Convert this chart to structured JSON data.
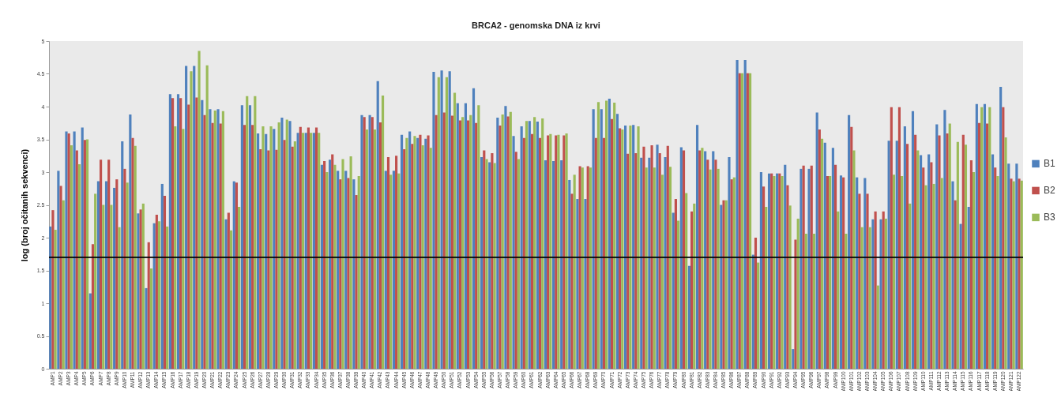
{
  "chart_data": {
    "type": "bar",
    "title": "BRCA2 - genomska DNA iz krvi",
    "ylabel": "log (broj očitanih sekvenci)",
    "categories": [
      "AMP1",
      "AMP2",
      "AMP3",
      "AMP4",
      "AMP5",
      "AMP6",
      "AMP7",
      "AMP8",
      "AMP9",
      "AMP10",
      "AMP11",
      "AMP12",
      "AMP13",
      "AMP14",
      "AMP15",
      "AMP16",
      "AMP17",
      "AMP18",
      "AMP19",
      "AMP20",
      "AMP21",
      "AMP22",
      "AMP23",
      "AMP24",
      "AMP25",
      "AMP26",
      "AMP27",
      "AMP28",
      "AMP29",
      "AMP30",
      "AMP31",
      "AMP32",
      "AMP33",
      "AMP34",
      "AMP35",
      "AMP36",
      "AMP37",
      "AMP38",
      "AMP39",
      "AMP40",
      "AMP41",
      "AMP42",
      "AMP43",
      "AMP44",
      "AMP45",
      "AMP46",
      "AMP47",
      "AMP48",
      "AMP49",
      "AMP50",
      "AMP51",
      "AMP52",
      "AMP53",
      "AMP54",
      "AMP55",
      "AMP56",
      "AMP57",
      "AMP58",
      "AMP59",
      "AMP60",
      "AMP61",
      "AMP62",
      "AMP63",
      "AMP64",
      "AMP65",
      "AMP66",
      "AMP67",
      "AMP68",
      "AMP69",
      "AMP70",
      "AMP71",
      "AMP72",
      "AMP73",
      "AMP74",
      "AMP75",
      "AMP76",
      "AMP77",
      "AMP78",
      "AMP79",
      "AMP80",
      "AMP81",
      "AMP82",
      "AMP83",
      "AMP84",
      "AMP85",
      "AMP86",
      "AMP87",
      "AMP88",
      "AMP89",
      "AMP90",
      "AMP91",
      "AMP92",
      "AMP93",
      "AMP94",
      "AMP95",
      "AMP96",
      "AMP97",
      "AMP98",
      "AMP99",
      "AMP100",
      "AMP101",
      "AMP102",
      "AMP103",
      "AMP104",
      "AMP105",
      "AMP106",
      "AMP107",
      "AMP108",
      "AMP109",
      "AMP110",
      "AMP111",
      "AMP112",
      "AMP113",
      "AMP114",
      "AMP115",
      "AMP116",
      "AMP117",
      "AMP118",
      "AMP119",
      "AMP120",
      "AMP121",
      "AMP122"
    ],
    "series": [
      {
        "name": "B1",
        "color": "#4f81bd",
        "values": [
          2.17,
          3.02,
          3.62,
          3.62,
          3.68,
          1.15,
          2.86,
          2.86,
          2.76,
          3.47,
          3.88,
          2.37,
          1.23,
          2.22,
          2.82,
          4.19,
          4.19,
          4.62,
          4.62,
          4.1,
          3.96,
          3.96,
          2.28,
          2.86,
          4.02,
          4.02,
          3.59,
          3.58,
          3.66,
          3.83,
          3.78,
          3.6,
          3.6,
          3.6,
          3.11,
          3.19,
          3.02,
          3.02,
          2.89,
          3.87,
          3.87,
          4.39,
          3.02,
          3.02,
          3.57,
          3.62,
          3.52,
          3.51,
          4.53,
          4.55,
          4.54,
          4.05,
          4.05,
          4.28,
          3.23,
          3.15,
          3.83,
          4.01,
          3.55,
          3.7,
          3.78,
          3.77,
          3.18,
          3.17,
          3.18,
          2.88,
          2.59,
          2.59,
          3.96,
          3.96,
          4.12,
          3.89,
          3.71,
          3.72,
          3.22,
          3.22,
          3.42,
          3.23,
          2.38,
          3.38,
          1.57,
          3.72,
          3.32,
          3.32,
          2.5,
          3.23,
          4.71,
          4.71,
          1.74,
          3.0,
          2.98,
          2.98,
          3.11,
          0.3,
          3.05,
          3.05,
          3.91,
          3.45,
          3.37,
          2.95,
          3.87,
          2.92,
          2.91,
          2.28,
          2.28,
          3.48,
          3.48,
          3.7,
          3.93,
          3.26,
          3.27,
          3.73,
          3.95,
          2.86,
          2.21,
          2.47,
          4.04,
          4.04,
          3.27,
          4.3,
          3.13,
          3.13
        ]
      },
      {
        "name": "B2",
        "color": "#c0504d",
        "values": [
          2.42,
          2.79,
          3.59,
          3.33,
          3.49,
          1.9,
          3.19,
          3.19,
          2.89,
          3.05,
          3.52,
          2.43,
          1.93,
          2.35,
          2.64,
          4.13,
          4.13,
          4.03,
          4.14,
          3.87,
          3.75,
          3.74,
          2.38,
          2.84,
          3.72,
          3.72,
          3.35,
          3.33,
          3.34,
          3.49,
          3.39,
          3.69,
          3.68,
          3.68,
          3.17,
          3.27,
          2.89,
          2.91,
          2.65,
          3.84,
          3.84,
          3.76,
          3.23,
          3.25,
          3.35,
          3.43,
          3.57,
          3.56,
          3.87,
          3.91,
          3.86,
          3.79,
          3.79,
          3.75,
          3.33,
          3.29,
          3.71,
          3.85,
          3.31,
          3.52,
          3.58,
          3.52,
          3.56,
          3.56,
          3.56,
          2.67,
          3.09,
          3.09,
          3.52,
          3.52,
          3.81,
          3.67,
          3.28,
          3.29,
          3.39,
          3.41,
          3.29,
          3.4,
          2.59,
          3.33,
          2.4,
          3.33,
          3.19,
          3.19,
          2.57,
          2.89,
          4.51,
          4.51,
          2.0,
          2.78,
          2.98,
          2.98,
          2.8,
          1.97,
          3.1,
          3.1,
          3.65,
          2.94,
          3.11,
          2.92,
          3.69,
          2.67,
          2.67,
          2.4,
          2.4,
          3.99,
          3.99,
          3.43,
          3.57,
          3.07,
          3.15,
          3.56,
          3.59,
          2.57,
          3.57,
          3.18,
          3.75,
          3.74,
          3.07,
          3.99,
          2.9,
          2.9
        ]
      },
      {
        "name": "B3",
        "color": "#9bbb59",
        "values": [
          2.12,
          2.57,
          3.41,
          3.12,
          3.5,
          2.67,
          2.5,
          2.5,
          2.16,
          2.84,
          3.4,
          2.52,
          1.53,
          2.25,
          2.17,
          3.7,
          3.66,
          4.54,
          4.85,
          4.63,
          3.94,
          3.93,
          2.11,
          2.47,
          4.16,
          4.16,
          3.7,
          3.7,
          3.76,
          3.8,
          3.47,
          3.6,
          3.6,
          3.6,
          3.0,
          3.11,
          3.2,
          3.24,
          2.94,
          3.65,
          3.65,
          4.17,
          2.96,
          2.98,
          3.52,
          3.55,
          3.41,
          3.37,
          4.45,
          4.45,
          4.21,
          3.84,
          3.87,
          4.02,
          3.2,
          3.14,
          3.88,
          3.92,
          3.2,
          3.78,
          3.84,
          3.82,
          3.58,
          3.57,
          3.59,
          2.96,
          3.07,
          3.07,
          4.07,
          4.09,
          4.06,
          3.65,
          3.71,
          3.7,
          3.07,
          3.07,
          2.96,
          3.08,
          2.26,
          2.68,
          2.52,
          3.37,
          3.04,
          3.05,
          2.57,
          2.92,
          4.51,
          4.51,
          1.62,
          2.47,
          2.94,
          2.94,
          2.49,
          2.29,
          2.06,
          2.06,
          3.51,
          2.94,
          2.4,
          2.06,
          3.33,
          2.16,
          2.16,
          1.27,
          2.29,
          2.96,
          2.94,
          2.52,
          3.33,
          2.8,
          2.82,
          2.91,
          3.74,
          3.46,
          3.42,
          3.0,
          3.99,
          3.99,
          2.94,
          3.53,
          2.86,
          2.87
        ]
      }
    ],
    "ylim": [
      0,
      5
    ],
    "yticks": [
      0,
      0.5,
      1,
      1.5,
      2,
      2.5,
      3,
      3.5,
      4,
      4.5,
      5
    ],
    "grid": false,
    "legend": "right",
    "ref_lines": [
      {
        "axis": "y",
        "value": 1.7,
        "color": "#000000"
      }
    ]
  }
}
